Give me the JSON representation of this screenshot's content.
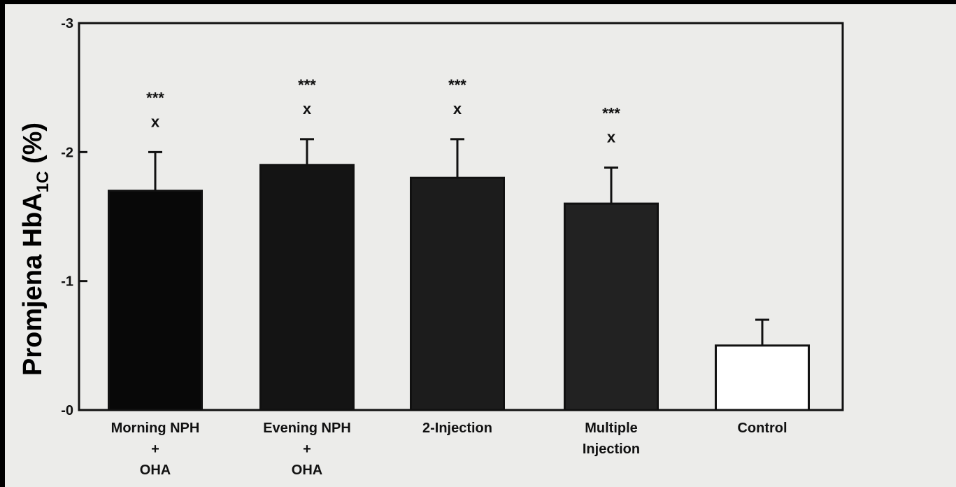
{
  "chart_data": {
    "type": "bar",
    "categories": [
      [
        "Morning NPH",
        "+",
        "OHA"
      ],
      [
        "Evening NPH",
        "+",
        "OHA"
      ],
      [
        "2-Injection"
      ],
      [
        "Multiple",
        "Injection"
      ],
      [
        "Control"
      ]
    ],
    "values": [
      -1.7,
      -1.9,
      -1.8,
      -1.6,
      -0.5
    ],
    "error": [
      0.3,
      0.2,
      0.3,
      0.28,
      0.2
    ],
    "significance": [
      "***",
      "***",
      "***",
      "***",
      ""
    ],
    "markers": [
      "x",
      "x",
      "x",
      "x",
      ""
    ],
    "bar_colors": [
      "#080808",
      "#141414",
      "#1c1c1c",
      "#222222",
      "#ffffff"
    ],
    "ylabel_main": "Promjena HbA",
    "ylabel_sub": "1C",
    "ylabel_unit": " (%)",
    "xlabel": "",
    "ylim": [
      0,
      -3
    ],
    "yticks": [
      {
        "value": -3,
        "label": "-3"
      },
      {
        "value": -2,
        "label": "-2"
      },
      {
        "value": -1,
        "label": "-1"
      },
      {
        "value": 0,
        "label": "-0"
      }
    ],
    "grid": false
  }
}
